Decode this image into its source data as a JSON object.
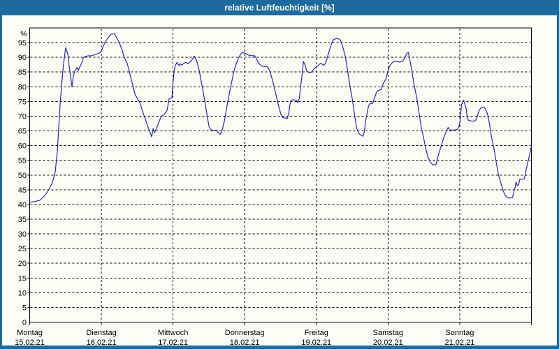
{
  "title_bar": {
    "title": "relative Luftfeuchtigkeit [%]"
  },
  "colors": {
    "frame": "#1d6b9e",
    "title_text": "#ffffff",
    "panel_bg": "#fdfdf6",
    "plot_bg": "#fdfdf6",
    "line": "#2323c8",
    "grid": "#000000",
    "axis": "#000000",
    "label_text": "#000000"
  },
  "chart_data": {
    "type": "line",
    "title": "relative Luftfeuchtigkeit [%]",
    "ylabel": "%",
    "y_unit_label": "%",
    "ylim": [
      0,
      100
    ],
    "ytick_step": 5,
    "ytick_label_min": 0,
    "ytick_label_max": 95,
    "grid": "dashed",
    "legend": "none",
    "x_unit": "days since Montag 00:00",
    "x_range_days": 7,
    "days": [
      {
        "name": "Montag",
        "date": "15.02.21"
      },
      {
        "name": "Dienstag",
        "date": "16.02.21"
      },
      {
        "name": "Mittwoch",
        "date": "17.02.21"
      },
      {
        "name": "Donnerstag",
        "date": "18.02.21"
      },
      {
        "name": "Freitag",
        "date": "19.02.21"
      },
      {
        "name": "Samstag",
        "date": "20.02.21"
      },
      {
        "name": "Sonntag",
        "date": "21.02.21"
      }
    ],
    "series_name": "relative Luftfeuchtigkeit",
    "points": [
      [
        0.0,
        40.7
      ],
      [
        0.073,
        41.0
      ],
      [
        0.141,
        41.4
      ],
      [
        0.21,
        43.0
      ],
      [
        0.268,
        45.0
      ],
      [
        0.317,
        47.5
      ],
      [
        0.356,
        51.0
      ],
      [
        0.385,
        58.0
      ],
      [
        0.405,
        66.0
      ],
      [
        0.424,
        74.0
      ],
      [
        0.444,
        80.0
      ],
      [
        0.463,
        85.5
      ],
      [
        0.483,
        89.8
      ],
      [
        0.502,
        93.3
      ],
      [
        0.532,
        91.0
      ],
      [
        0.551,
        87.0
      ],
      [
        0.571,
        83.5
      ],
      [
        0.59,
        80.0
      ],
      [
        0.61,
        83.9
      ],
      [
        0.629,
        85.3
      ],
      [
        0.659,
        86.5
      ],
      [
        0.678,
        85.5
      ],
      [
        0.698,
        86.7
      ],
      [
        0.727,
        88.2
      ],
      [
        0.746,
        89.8
      ],
      [
        0.766,
        90.2
      ],
      [
        0.815,
        90.5
      ],
      [
        0.863,
        90.5
      ],
      [
        0.902,
        90.9
      ],
      [
        0.941,
        91.2
      ],
      [
        0.99,
        91.7
      ],
      [
        1.02,
        93.4
      ],
      [
        1.049,
        95.0
      ],
      [
        1.078,
        96.2
      ],
      [
        1.117,
        97.3
      ],
      [
        1.137,
        97.9
      ],
      [
        1.176,
        98.0
      ],
      [
        1.205,
        97.0
      ],
      [
        1.224,
        96.2
      ],
      [
        1.263,
        94.2
      ],
      [
        1.293,
        92.2
      ],
      [
        1.322,
        89.8
      ],
      [
        1.361,
        87.9
      ],
      [
        1.39,
        85.1
      ],
      [
        1.42,
        82.1
      ],
      [
        1.439,
        80.5
      ],
      [
        1.468,
        77.5
      ],
      [
        1.537,
        74.5
      ],
      [
        1.605,
        69.5
      ],
      [
        1.663,
        65.5
      ],
      [
        1.702,
        63.0
      ],
      [
        1.722,
        65.8
      ],
      [
        1.741,
        64.3
      ],
      [
        1.771,
        66.0
      ],
      [
        1.81,
        68.5
      ],
      [
        1.839,
        70.0
      ],
      [
        1.878,
        70.6
      ],
      [
        1.917,
        72.0
      ],
      [
        1.946,
        76.0
      ],
      [
        1.985,
        76.3
      ],
      [
        1.995,
        80.0
      ],
      [
        2.015,
        85.5
      ],
      [
        2.034,
        87.3
      ],
      [
        2.054,
        88.3
      ],
      [
        2.083,
        87.2
      ],
      [
        2.102,
        87.8
      ],
      [
        2.122,
        87.3
      ],
      [
        2.151,
        88.0
      ],
      [
        2.18,
        88.3
      ],
      [
        2.21,
        87.8
      ],
      [
        2.239,
        88.5
      ],
      [
        2.268,
        89.3
      ],
      [
        2.298,
        90.4
      ],
      [
        2.327,
        89.0
      ],
      [
        2.356,
        86.5
      ],
      [
        2.385,
        83.0
      ],
      [
        2.415,
        79.0
      ],
      [
        2.444,
        75.0
      ],
      [
        2.473,
        70.5
      ],
      [
        2.502,
        66.5
      ],
      [
        2.532,
        65.3
      ],
      [
        2.571,
        65.1
      ],
      [
        2.61,
        65.2
      ],
      [
        2.639,
        64.2
      ],
      [
        2.659,
        63.8
      ],
      [
        2.688,
        65.5
      ],
      [
        2.717,
        68.5
      ],
      [
        2.746,
        72.5
      ],
      [
        2.776,
        76.5
      ],
      [
        2.805,
        80.0
      ],
      [
        2.834,
        83.5
      ],
      [
        2.863,
        86.5
      ],
      [
        2.893,
        88.5
      ],
      [
        2.922,
        90.2
      ],
      [
        2.951,
        91.3
      ],
      [
        2.971,
        91.7
      ],
      [
        2.99,
        91.5
      ],
      [
        3.02,
        91.2
      ],
      [
        3.049,
        90.8
      ],
      [
        3.088,
        90.6
      ],
      [
        3.137,
        90.5
      ],
      [
        3.166,
        89.5
      ],
      [
        3.185,
        88.3
      ],
      [
        3.205,
        87.7
      ],
      [
        3.234,
        87.0
      ],
      [
        3.273,
        86.9
      ],
      [
        3.312,
        86.8
      ],
      [
        3.332,
        86.3
      ],
      [
        3.361,
        84.5
      ],
      [
        3.39,
        82.0
      ],
      [
        3.42,
        79.0
      ],
      [
        3.449,
        76.0
      ],
      [
        3.478,
        73.0
      ],
      [
        3.507,
        70.5
      ],
      [
        3.527,
        69.6
      ],
      [
        3.556,
        69.4
      ],
      [
        3.595,
        69.3
      ],
      [
        3.615,
        71.0
      ],
      [
        3.624,
        73.0
      ],
      [
        3.644,
        75.3
      ],
      [
        3.673,
        75.6
      ],
      [
        3.702,
        75.5
      ],
      [
        3.722,
        75.4
      ],
      [
        3.741,
        74.6
      ],
      [
        3.761,
        76.0
      ],
      [
        3.78,
        80.0
      ],
      [
        3.8,
        84.0
      ],
      [
        3.82,
        88.6
      ],
      [
        3.839,
        87.5
      ],
      [
        3.868,
        85.2
      ],
      [
        3.898,
        84.8
      ],
      [
        3.927,
        84.9
      ],
      [
        3.956,
        85.8
      ],
      [
        3.985,
        86.5
      ],
      [
        4.015,
        87.0
      ],
      [
        4.044,
        87.7
      ],
      [
        4.063,
        88.0
      ],
      [
        4.083,
        87.6
      ],
      [
        4.102,
        87.3
      ],
      [
        4.122,
        87.8
      ],
      [
        4.141,
        89.0
      ],
      [
        4.171,
        91.6
      ],
      [
        4.2,
        93.8
      ],
      [
        4.22,
        95.2
      ],
      [
        4.239,
        96.0
      ],
      [
        4.268,
        96.3
      ],
      [
        4.288,
        96.5
      ],
      [
        4.317,
        96.2
      ],
      [
        4.337,
        95.8
      ],
      [
        4.366,
        93.8
      ],
      [
        4.405,
        90.2
      ],
      [
        4.434,
        85.8
      ],
      [
        4.463,
        81.0
      ],
      [
        4.502,
        75.6
      ],
      [
        4.532,
        70.4
      ],
      [
        4.561,
        66.0
      ],
      [
        4.59,
        64.2
      ],
      [
        4.62,
        63.6
      ],
      [
        4.649,
        63.2
      ],
      [
        4.668,
        64.5
      ],
      [
        4.688,
        68.5
      ],
      [
        4.707,
        71.0
      ],
      [
        4.727,
        73.4
      ],
      [
        4.746,
        74.2
      ],
      [
        4.785,
        74.4
      ],
      [
        4.805,
        75.8
      ],
      [
        4.834,
        77.8
      ],
      [
        4.854,
        78.6
      ],
      [
        4.883,
        78.9
      ],
      [
        4.902,
        79.0
      ],
      [
        4.932,
        81.0
      ],
      [
        4.971,
        82.6
      ],
      [
        4.99,
        84.5
      ],
      [
        5.02,
        87.0
      ],
      [
        5.059,
        88.2
      ],
      [
        5.088,
        88.7
      ],
      [
        5.127,
        88.6
      ],
      [
        5.156,
        88.4
      ],
      [
        5.176,
        88.5
      ],
      [
        5.205,
        88.8
      ],
      [
        5.234,
        89.8
      ],
      [
        5.263,
        91.4
      ],
      [
        5.283,
        91.6
      ],
      [
        5.302,
        89.5
      ],
      [
        5.332,
        85.4
      ],
      [
        5.361,
        81.0
      ],
      [
        5.4,
        76.3
      ],
      [
        5.429,
        71.6
      ],
      [
        5.459,
        66.8
      ],
      [
        5.498,
        62.5
      ],
      [
        5.527,
        58.9
      ],
      [
        5.556,
        56.1
      ],
      [
        5.595,
        54.2
      ],
      [
        5.624,
        53.4
      ],
      [
        5.654,
        53.5
      ],
      [
        5.673,
        53.8
      ],
      [
        5.702,
        56.9
      ],
      [
        5.741,
        59.8
      ],
      [
        5.771,
        62.2
      ],
      [
        5.8,
        64.1
      ],
      [
        5.82,
        65.3
      ],
      [
        5.839,
        66.2
      ],
      [
        5.859,
        65.2
      ],
      [
        5.888,
        65.3
      ],
      [
        5.927,
        65.3
      ],
      [
        5.966,
        65.5
      ],
      [
        5.985,
        66.3
      ],
      [
        6.005,
        68.0
      ],
      [
        6.024,
        73.8
      ],
      [
        6.044,
        75.0
      ],
      [
        6.054,
        75.5
      ],
      [
        6.073,
        74.0
      ],
      [
        6.093,
        72.2
      ],
      [
        6.102,
        69.8
      ],
      [
        6.122,
        68.6
      ],
      [
        6.151,
        68.4
      ],
      [
        6.19,
        68.3
      ],
      [
        6.22,
        68.5
      ],
      [
        6.239,
        69.4
      ],
      [
        6.268,
        71.8
      ],
      [
        6.298,
        72.9
      ],
      [
        6.327,
        73.0
      ],
      [
        6.346,
        72.9
      ],
      [
        6.385,
        71.0
      ],
      [
        6.415,
        67.5
      ],
      [
        6.444,
        62.7
      ],
      [
        6.483,
        58.3
      ],
      [
        6.512,
        54.0
      ],
      [
        6.541,
        50.0
      ],
      [
        6.58,
        46.8
      ],
      [
        6.61,
        44.4
      ],
      [
        6.639,
        42.9
      ],
      [
        6.678,
        42.2
      ],
      [
        6.707,
        42.2
      ],
      [
        6.737,
        42.4
      ],
      [
        6.756,
        44.4
      ],
      [
        6.776,
        46.0
      ],
      [
        6.785,
        47.6
      ],
      [
        6.805,
        46.4
      ],
      [
        6.824,
        46.8
      ],
      [
        6.834,
        48.4
      ],
      [
        6.863,
        48.6
      ],
      [
        6.902,
        48.7
      ],
      [
        6.932,
        52.4
      ],
      [
        6.971,
        56.4
      ],
      [
        7.0,
        59.8
      ]
    ]
  }
}
